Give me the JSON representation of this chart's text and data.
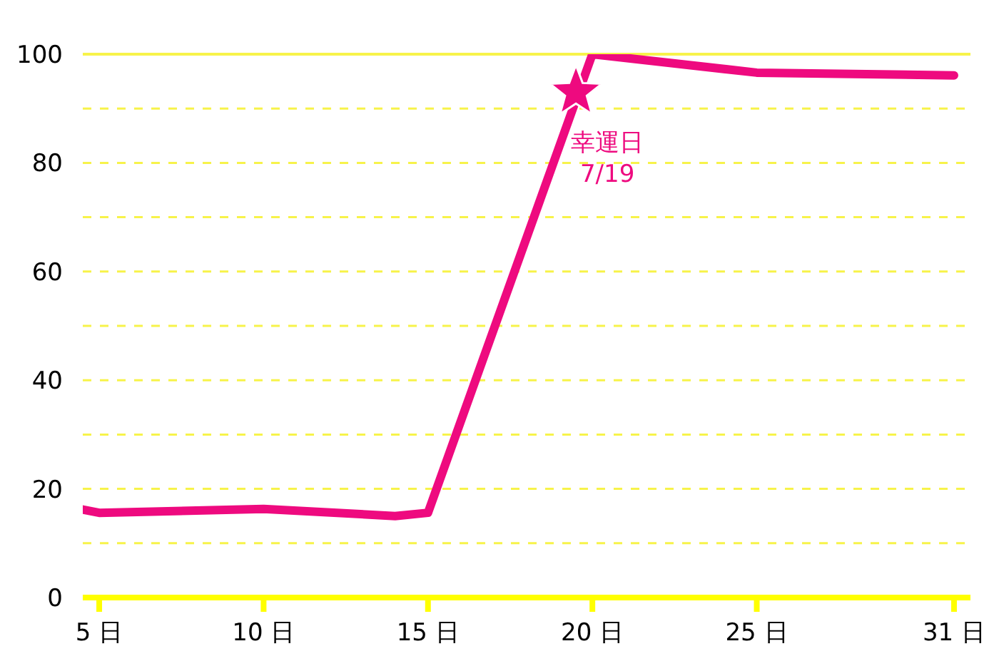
{
  "chart_data": {
    "type": "line",
    "x": [
      4.5,
      5,
      10,
      14,
      15,
      20,
      25,
      31
    ],
    "series": [
      {
        "color": "#ee0a7f",
        "values": [
          16.2,
          15.6,
          16.3,
          15,
          15.6,
          100,
          96.6,
          96.1
        ]
      }
    ],
    "xlim": [
      4.5,
      31.5
    ],
    "xticks": [
      {
        "value": 5,
        "label": "5 日"
      },
      {
        "value": 10,
        "label": "10 日"
      },
      {
        "value": 15,
        "label": "15 日"
      },
      {
        "value": 20,
        "label": "20 日"
      },
      {
        "value": 25,
        "label": "25 日"
      },
      {
        "value": 31,
        "label": "31 日"
      }
    ],
    "ylim": [
      0,
      100
    ],
    "yticks": [
      0,
      {
        "value": 10,
        "label": null
      },
      20,
      {
        "value": 30,
        "label": null
      },
      40,
      {
        "value": 50,
        "label": null
      },
      60,
      {
        "value": 70,
        "label": null
      },
      80,
      {
        "value": 90,
        "label": null
      },
      100
    ],
    "grid": "y",
    "marker": "none",
    "line_style": "solid",
    "annotations": [
      {
        "text": "幸運日\n7/19",
        "x": 19.5,
        "y": 93
      }
    ]
  }
}
